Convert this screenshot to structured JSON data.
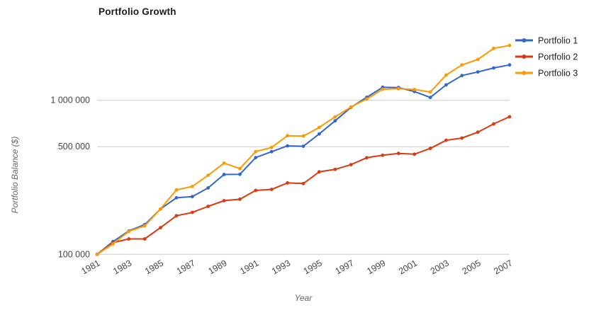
{
  "chart_data": {
    "type": "line",
    "title": "Portfolio Growth",
    "xlabel": "Year",
    "ylabel": "Portfolio Balance ($)",
    "y_scale": "log",
    "grid": "horizontal",
    "legend_position": "right",
    "xlim": [
      1981,
      2007
    ],
    "ylim": [
      100000,
      2400000
    ],
    "x_ticks": [
      1981,
      1983,
      1985,
      1987,
      1989,
      1991,
      1993,
      1995,
      1997,
      1999,
      2001,
      2003,
      2005,
      2007
    ],
    "y_ticks": [
      {
        "value": 100000,
        "label": "100 000"
      },
      {
        "value": 500000,
        "label": "500 000"
      },
      {
        "value": 1000000,
        "label": "1 000 000"
      }
    ],
    "x": [
      1981,
      1982,
      1983,
      1984,
      1985,
      1986,
      1987,
      1988,
      1989,
      1990,
      1991,
      1992,
      1993,
      1994,
      1995,
      1996,
      1997,
      1998,
      1999,
      2000,
      2001,
      2002,
      2003,
      2004,
      2005,
      2006,
      2007
    ],
    "series": [
      {
        "name": "Portfolio 1",
        "color": "#3366CC",
        "values": [
          100000,
          121000,
          142000,
          156000,
          197000,
          233000,
          237000,
          270000,
          330000,
          331000,
          425000,
          464000,
          506000,
          503000,
          605000,
          736000,
          900000,
          1047000,
          1215000,
          1210000,
          1140000,
          1043000,
          1259000,
          1449000,
          1527000,
          1622000,
          1698000
        ]
      },
      {
        "name": "Portfolio 2",
        "color": "#DC3912",
        "values": [
          100000,
          119000,
          126000,
          126000,
          149000,
          178000,
          187000,
          205000,
          223000,
          228000,
          260000,
          264000,
          291000,
          288000,
          343000,
          356000,
          382000,
          424000,
          440000,
          452000,
          447000,
          487000,
          550000,
          569000,
          621000,
          703000,
          782000
        ]
      },
      {
        "name": "Portfolio 3",
        "color": "#FF9900",
        "values": [
          100000,
          117000,
          141000,
          153000,
          197000,
          262000,
          276000,
          326000,
          391000,
          360000,
          465000,
          494000,
          589000,
          586000,
          667000,
          781000,
          905000,
          1019000,
          1180000,
          1190000,
          1176000,
          1132000,
          1459000,
          1698000,
          1841000,
          2174000,
          2270000
        ]
      }
    ],
    "colors": {
      "gridline": "#cccccc",
      "tick_label": "#444444",
      "axis_title": "#666666",
      "legend_text": "#222222",
      "title": "#1a1a1a",
      "background": "#ffffff"
    }
  }
}
